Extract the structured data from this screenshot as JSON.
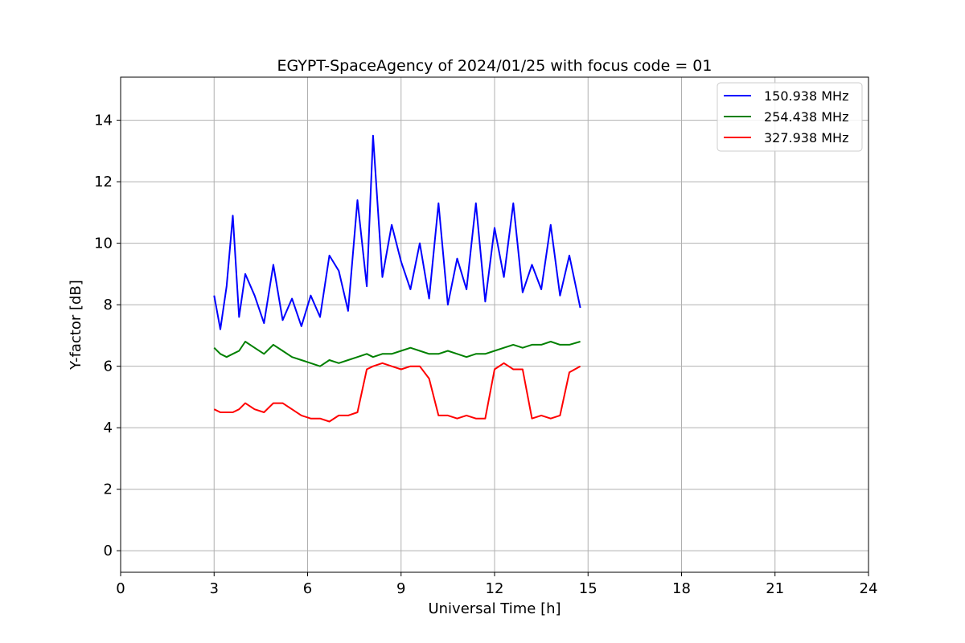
{
  "chart_data": {
    "type": "line",
    "title": "EGYPT-SpaceAgency of 2024/01/25 with focus code = 01",
    "xlabel": "Universal Time [h]",
    "ylabel": "Y-factor [dB]",
    "xlim": [
      0,
      24
    ],
    "ylim": [
      -0.7,
      15.4
    ],
    "xticks": [
      0,
      3,
      6,
      9,
      12,
      15,
      18,
      21,
      24
    ],
    "yticks": [
      0,
      2,
      4,
      6,
      8,
      10,
      12,
      14
    ],
    "grid": true,
    "legend_position": "top-right",
    "series": [
      {
        "name": "150.938 MHz",
        "color": "#0000ff",
        "x": [
          3.0,
          3.2,
          3.4,
          3.6,
          3.8,
          4.0,
          4.3,
          4.6,
          4.9,
          5.2,
          5.5,
          5.8,
          6.1,
          6.4,
          6.7,
          7.0,
          7.3,
          7.6,
          7.9,
          8.1,
          8.4,
          8.7,
          9.0,
          9.3,
          9.6,
          9.9,
          10.2,
          10.5,
          10.8,
          11.1,
          11.4,
          11.7,
          12.0,
          12.3,
          12.6,
          12.9,
          13.2,
          13.5,
          13.8,
          14.1,
          14.4,
          14.75
        ],
        "y": [
          8.3,
          7.2,
          8.6,
          10.9,
          7.6,
          9.0,
          8.3,
          7.4,
          9.3,
          7.5,
          8.2,
          7.3,
          8.3,
          7.6,
          9.6,
          9.1,
          7.8,
          11.4,
          8.6,
          13.5,
          8.9,
          10.6,
          9.4,
          8.5,
          10.0,
          8.2,
          11.3,
          8.0,
          9.5,
          8.5,
          11.3,
          8.1,
          10.5,
          8.9,
          11.3,
          8.4,
          9.3,
          8.5,
          10.6,
          8.3,
          9.6,
          7.9
        ]
      },
      {
        "name": "254.438 MHz",
        "color": "#008000",
        "x": [
          3.0,
          3.2,
          3.4,
          3.6,
          3.8,
          4.0,
          4.3,
          4.6,
          4.9,
          5.2,
          5.5,
          5.8,
          6.1,
          6.4,
          6.7,
          7.0,
          7.3,
          7.6,
          7.9,
          8.1,
          8.4,
          8.7,
          9.0,
          9.3,
          9.6,
          9.9,
          10.2,
          10.5,
          10.8,
          11.1,
          11.4,
          11.7,
          12.0,
          12.3,
          12.6,
          12.9,
          13.2,
          13.5,
          13.8,
          14.1,
          14.4,
          14.75
        ],
        "y": [
          6.6,
          6.4,
          6.3,
          6.4,
          6.5,
          6.8,
          6.6,
          6.4,
          6.7,
          6.5,
          6.3,
          6.2,
          6.1,
          6.0,
          6.2,
          6.1,
          6.2,
          6.3,
          6.4,
          6.3,
          6.4,
          6.4,
          6.5,
          6.6,
          6.5,
          6.4,
          6.4,
          6.5,
          6.4,
          6.3,
          6.4,
          6.4,
          6.5,
          6.6,
          6.7,
          6.6,
          6.7,
          6.7,
          6.8,
          6.7,
          6.7,
          6.8
        ]
      },
      {
        "name": "327.938 MHz",
        "color": "#ff0000",
        "x": [
          3.0,
          3.2,
          3.4,
          3.6,
          3.8,
          4.0,
          4.3,
          4.6,
          4.9,
          5.2,
          5.5,
          5.8,
          6.1,
          6.4,
          6.7,
          7.0,
          7.3,
          7.6,
          7.9,
          8.1,
          8.4,
          8.7,
          9.0,
          9.3,
          9.6,
          9.9,
          10.2,
          10.5,
          10.8,
          11.1,
          11.4,
          11.7,
          12.0,
          12.3,
          12.6,
          12.9,
          13.2,
          13.5,
          13.8,
          14.1,
          14.4,
          14.75
        ],
        "y": [
          4.6,
          4.5,
          4.5,
          4.5,
          4.6,
          4.8,
          4.6,
          4.5,
          4.8,
          4.8,
          4.6,
          4.4,
          4.3,
          4.3,
          4.2,
          4.4,
          4.4,
          4.5,
          5.9,
          6.0,
          6.1,
          6.0,
          5.9,
          6.0,
          6.0,
          5.6,
          4.4,
          4.4,
          4.3,
          4.4,
          4.3,
          4.3,
          5.9,
          6.1,
          5.9,
          5.9,
          4.3,
          4.4,
          4.3,
          4.4,
          5.8,
          6.0
        ]
      }
    ]
  }
}
